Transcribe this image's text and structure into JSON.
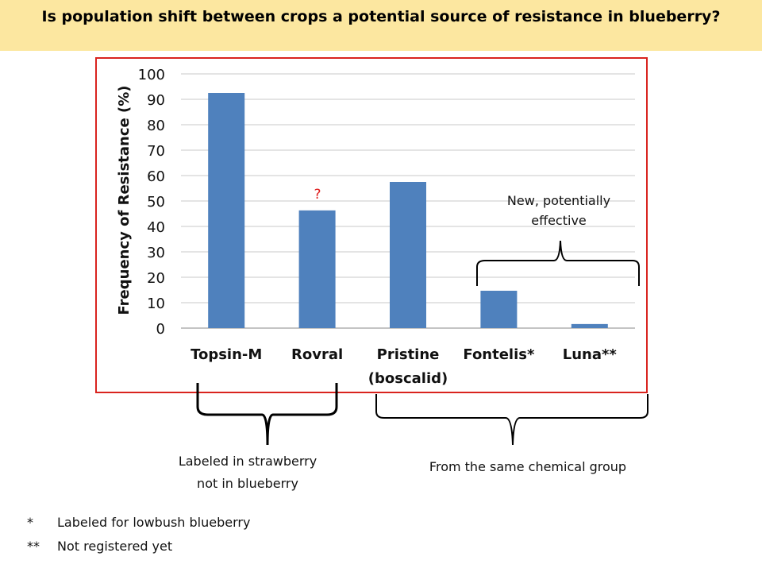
{
  "title": "Is population shift between crops a potential source of resistance in blueberry?",
  "chart_data": {
    "type": "bar",
    "categories": [
      "Topsin-M",
      "Rovral",
      "Pristine",
      "Fontelis*",
      "Luna**"
    ],
    "category_sublabels": [
      "",
      "",
      "(boscalid)",
      "",
      ""
    ],
    "values": [
      92.5,
      46.3,
      57.5,
      14.7,
      1.6
    ],
    "ylabel": "Frequency of Resistance (%)",
    "ylim": [
      0,
      100
    ],
    "yticks": [
      0,
      10,
      20,
      30,
      40,
      50,
      60,
      70,
      80,
      90,
      100
    ],
    "bar_color": "#4f81bd",
    "grid": true,
    "question_mark": "?",
    "question_mark_color": "#e02020"
  },
  "annotations": {
    "new_effective": "New, potentially\neffective",
    "labeled_strawberry": "Labeled in strawberry\nnot in blueberry",
    "same_group": "From the same chemical group"
  },
  "footnotes": [
    {
      "mark": "*",
      "text": "Labeled for lowbush blueberry"
    },
    {
      "mark": "**",
      "text": "Not registered yet"
    }
  ],
  "colors": {
    "title_background": "#fce7a0",
    "frame_border": "#d9231e"
  }
}
